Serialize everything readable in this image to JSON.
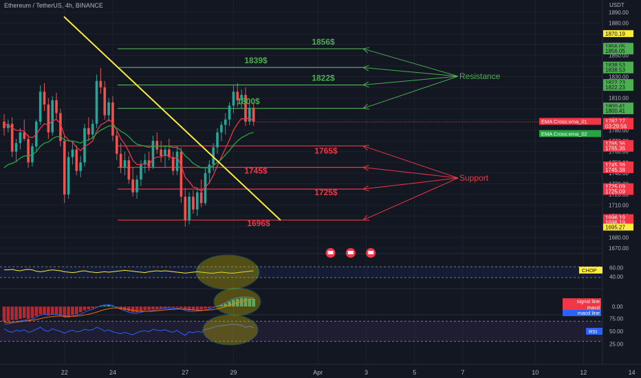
{
  "header": {
    "symbol_line": "Ethereum / TetherUS, 4h, BINANCE",
    "currency": "USDT"
  },
  "colors": {
    "bg": "#131722",
    "grid": "#1e222d",
    "up": "#26a69a",
    "down": "#ef5350",
    "resistance": "#4caf50",
    "support": "#f23645",
    "trendline": "#ffeb3b",
    "ema1": "#f23645",
    "ema2": "#26a641"
  },
  "price_axis": {
    "ticks": [
      "1890.00",
      "1880.00",
      "1870.00",
      "1860.00",
      "1850.00",
      "1840.00",
      "1830.00",
      "1820.00",
      "1810.00",
      "1800.00",
      "1790.00",
      "1780.00",
      "1770.00",
      "1760.00",
      "1750.00",
      "1740.00",
      "1730.00",
      "1720.00",
      "1710.00",
      "1700.00",
      "1690.00",
      "1680.00",
      "1670.00"
    ],
    "ylim": [
      1668,
      1898
    ],
    "tags": [
      {
        "text": "1870.19",
        "value": 1870.19,
        "bg": "#ffeb3b",
        "fg": "#131722"
      },
      {
        "text": "1856.05",
        "value": 1858.3,
        "bg": "#4caf50",
        "fg": "#131722"
      },
      {
        "text": "1856.05",
        "value": 1854.0,
        "bg": "#4caf50",
        "fg": "#131722"
      },
      {
        "text": "1838.53",
        "value": 1840.8,
        "bg": "#4caf50",
        "fg": "#131722"
      },
      {
        "text": "1838.53",
        "value": 1836.3,
        "bg": "#4caf50",
        "fg": "#131722"
      },
      {
        "text": "1822.23",
        "value": 1824.5,
        "bg": "#4caf50",
        "fg": "#131722"
      },
      {
        "text": "1822.23",
        "value": 1820.0,
        "bg": "#4caf50",
        "fg": "#131722"
      },
      {
        "text": "1800.41",
        "value": 1802.6,
        "bg": "#4caf50",
        "fg": "#131722"
      },
      {
        "text": "1800.41",
        "value": 1798.2,
        "bg": "#4caf50",
        "fg": "#131722"
      },
      {
        "text": "1787.77",
        "value": 1788.3,
        "bg": "#f23645",
        "fg": "#ffffff"
      },
      {
        "text": "03:29:56",
        "value": 1784.0,
        "bg": "#f23645",
        "fg": "#ffffff"
      },
      {
        "text": "1765.36",
        "value": 1767.6,
        "bg": "#f23645",
        "fg": "#ffffff"
      },
      {
        "text": "1765.36",
        "value": 1763.2,
        "bg": "#f23645",
        "fg": "#ffffff"
      },
      {
        "text": "1745.38",
        "value": 1747.6,
        "bg": "#f23645",
        "fg": "#ffffff"
      },
      {
        "text": "1745.38",
        "value": 1743.2,
        "bg": "#f23645",
        "fg": "#ffffff"
      },
      {
        "text": "1725.09",
        "value": 1727.3,
        "bg": "#f23645",
        "fg": "#ffffff"
      },
      {
        "text": "1725.09",
        "value": 1722.9,
        "bg": "#f23645",
        "fg": "#ffffff"
      },
      {
        "text": "1696.19",
        "value": 1698.4,
        "bg": "#f23645",
        "fg": "#ffffff"
      },
      {
        "text": "1696.19",
        "value": 1694.0,
        "bg": "#f23645",
        "fg": "#ffffff"
      },
      {
        "text": "1695.27",
        "value": 1689.6,
        "bg": "#ffeb3b",
        "fg": "#131722"
      }
    ],
    "indicator_labels": [
      {
        "text": "EMA Cross:ema_01",
        "value": 1788.3,
        "bg": "#f23645"
      },
      {
        "text": "EMA Cross:ema_02",
        "value": 1776.9,
        "bg": "#26a641"
      }
    ]
  },
  "x_axis": {
    "ticks": [
      {
        "label": "22",
        "bar": 15
      },
      {
        "label": "24",
        "bar": 27
      },
      {
        "label": "27",
        "bar": 45
      },
      {
        "label": "29",
        "bar": 57
      },
      {
        "label": "Apr",
        "bar": 78
      },
      {
        "label": "3",
        "bar": 90
      },
      {
        "label": "5",
        "bar": 102
      },
      {
        "label": "7",
        "bar": 114
      },
      {
        "label": "10",
        "bar": 132
      },
      {
        "label": "12",
        "bar": 144
      },
      {
        "label": "14",
        "bar": 156
      }
    ]
  },
  "chart_data": {
    "type": "candlestick",
    "title": "Ethereum / TetherUS, 4h, BINANCE",
    "ylim": [
      1668,
      1898
    ],
    "ohlc": [
      [
        1788,
        1795,
        1775,
        1782
      ],
      [
        1782,
        1790,
        1778,
        1786
      ],
      [
        1786,
        1792,
        1755,
        1760
      ],
      [
        1760,
        1772,
        1750,
        1768
      ],
      [
        1768,
        1782,
        1762,
        1778
      ],
      [
        1778,
        1790,
        1770,
        1772
      ],
      [
        1772,
        1776,
        1745,
        1750
      ],
      [
        1750,
        1768,
        1746,
        1765
      ],
      [
        1765,
        1790,
        1760,
        1788
      ],
      [
        1788,
        1822,
        1785,
        1816
      ],
      [
        1816,
        1824,
        1798,
        1804
      ],
      [
        1804,
        1810,
        1772,
        1778
      ],
      [
        1778,
        1812,
        1775,
        1808
      ],
      [
        1808,
        1815,
        1790,
        1796
      ],
      [
        1796,
        1800,
        1765,
        1770
      ],
      [
        1770,
        1776,
        1712,
        1720
      ],
      [
        1720,
        1760,
        1716,
        1755
      ],
      [
        1755,
        1770,
        1748,
        1762
      ],
      [
        1762,
        1766,
        1738,
        1742
      ],
      [
        1742,
        1756,
        1736,
        1750
      ],
      [
        1750,
        1786,
        1746,
        1782
      ],
      [
        1782,
        1792,
        1770,
        1776
      ],
      [
        1776,
        1790,
        1772,
        1786
      ],
      [
        1786,
        1832,
        1782,
        1826
      ],
      [
        1826,
        1838,
        1814,
        1820
      ],
      [
        1820,
        1826,
        1790,
        1794
      ],
      [
        1794,
        1810,
        1788,
        1806
      ],
      [
        1806,
        1812,
        1770,
        1775
      ],
      [
        1775,
        1780,
        1752,
        1758
      ],
      [
        1758,
        1768,
        1740,
        1745
      ],
      [
        1745,
        1760,
        1738,
        1752
      ],
      [
        1752,
        1756,
        1730,
        1734
      ],
      [
        1734,
        1745,
        1718,
        1722
      ],
      [
        1722,
        1738,
        1716,
        1734
      ],
      [
        1734,
        1752,
        1728,
        1748
      ],
      [
        1748,
        1758,
        1740,
        1752
      ],
      [
        1752,
        1760,
        1742,
        1746
      ],
      [
        1746,
        1775,
        1744,
        1770
      ],
      [
        1770,
        1778,
        1758,
        1762
      ],
      [
        1762,
        1770,
        1750,
        1756
      ],
      [
        1756,
        1766,
        1745,
        1762
      ],
      [
        1762,
        1772,
        1752,
        1755
      ],
      [
        1755,
        1760,
        1738,
        1742
      ],
      [
        1742,
        1765,
        1738,
        1760
      ],
      [
        1760,
        1764,
        1712,
        1718
      ],
      [
        1718,
        1726,
        1690,
        1696
      ],
      [
        1696,
        1722,
        1692,
        1718
      ],
      [
        1718,
        1724,
        1702,
        1706
      ],
      [
        1706,
        1726,
        1700,
        1722
      ],
      [
        1722,
        1734,
        1708,
        1712
      ],
      [
        1712,
        1745,
        1710,
        1740
      ],
      [
        1740,
        1752,
        1730,
        1748
      ],
      [
        1748,
        1768,
        1742,
        1764
      ],
      [
        1764,
        1782,
        1758,
        1778
      ],
      [
        1778,
        1788,
        1770,
        1785
      ],
      [
        1785,
        1796,
        1776,
        1790
      ],
      [
        1790,
        1806,
        1784,
        1803
      ],
      [
        1803,
        1822,
        1796,
        1816
      ],
      [
        1816,
        1824,
        1802,
        1808
      ],
      [
        1808,
        1818,
        1800,
        1813
      ],
      [
        1813,
        1820,
        1784,
        1788
      ],
      [
        1788,
        1806,
        1785,
        1801
      ],
      [
        1801,
        1806,
        1784,
        1788
      ]
    ],
    "ema_01": [
      1785,
      1785,
      1782,
      1780,
      1780,
      1779,
      1774,
      1773,
      1776,
      1782,
      1786,
      1785,
      1789,
      1790,
      1786,
      1775,
      1771,
      1769,
      1764,
      1761,
      1765,
      1767,
      1770,
      1779,
      1785,
      1787,
      1790,
      1787,
      1780,
      1772,
      1767,
      1760,
      1752,
      1748,
      1748,
      1749,
      1748,
      1753,
      1755,
      1755,
      1757,
      1756,
      1753,
      1755,
      1747,
      1736,
      1732,
      1727,
      1726,
      1723,
      1727,
      1731,
      1738,
      1747,
      1755,
      1763,
      1771,
      1780,
      1786,
      1791,
      1790,
      1792,
      1788
    ],
    "ema_02": [
      1745,
      1748,
      1749,
      1751,
      1754,
      1756,
      1756,
      1757,
      1760,
      1765,
      1768,
      1769,
      1772,
      1774,
      1774,
      1771,
      1770,
      1770,
      1769,
      1768,
      1770,
      1771,
      1773,
      1777,
      1780,
      1782,
      1784,
      1784,
      1782,
      1779,
      1777,
      1774,
      1770,
      1767,
      1766,
      1765,
      1764,
      1765,
      1765,
      1765,
      1765,
      1765,
      1764,
      1764,
      1761,
      1756,
      1753,
      1749,
      1747,
      1745,
      1745,
      1745,
      1747,
      1750,
      1753,
      1757,
      1761,
      1766,
      1770,
      1773,
      1775,
      1777,
      1778
    ],
    "resistance_levels": [
      {
        "label": "1856$",
        "value": 1856.05
      },
      {
        "label": "1839$",
        "value": 1838.53
      },
      {
        "label": "1822$",
        "value": 1822.23
      },
      {
        "label": "1800$",
        "value": 1800.41
      }
    ],
    "support_levels": [
      {
        "label": "1765$",
        "value": 1765.36
      },
      {
        "label": "1745$",
        "value": 1745.38
      },
      {
        "label": "1725$",
        "value": 1725.09
      },
      {
        "label": "1696$",
        "value": 1696.19
      }
    ],
    "resistance_title": "Resistance",
    "support_title": "Support",
    "trendline": {
      "from": [
        14,
        1886
      ],
      "to": [
        64,
        1696
      ]
    },
    "events_bars": [
      76,
      81,
      86
    ]
  },
  "subpanels": {
    "chop": {
      "label": "CHOP",
      "ticks": [
        "60.00",
        "40.00"
      ],
      "ylim": [
        20,
        80
      ],
      "band": [
        38.2,
        61.8
      ],
      "values": [
        55,
        55,
        56,
        54,
        53,
        55,
        56,
        55,
        52,
        51,
        52,
        54,
        55,
        54,
        53,
        51,
        50,
        49,
        50,
        52,
        53,
        51,
        50,
        49,
        50,
        51,
        50,
        51,
        52,
        53,
        54,
        53,
        52,
        51,
        50,
        49,
        51,
        52,
        53,
        52,
        53,
        52,
        51,
        50,
        49,
        48,
        49,
        50,
        51,
        50,
        49,
        48,
        48,
        49,
        50,
        49,
        48,
        48,
        49,
        50,
        51,
        52,
        53
      ]
    },
    "macd": {
      "labels": [
        "signal line",
        "macd",
        "macd line"
      ],
      "tick": "0.00",
      "hist": [
        -8,
        -7.5,
        -7,
        -7,
        -6.5,
        -6,
        -6.5,
        -6,
        -5,
        -4,
        -4,
        -4.5,
        -4,
        -4,
        -4.5,
        -5.5,
        -5,
        -4.5,
        -4,
        -3,
        -2,
        -1.5,
        -1,
        -0.5,
        0.3,
        0.5,
        0.8,
        0.3,
        -0.5,
        -1.5,
        -2,
        -2.5,
        -3,
        -3,
        -2.5,
        -2,
        -2,
        -1.5,
        -1.2,
        -1,
        -0.8,
        -0.6,
        -0.6,
        -0.4,
        -0.8,
        -1.5,
        -2,
        -2,
        -1.8,
        -1.6,
        -1.2,
        -0.8,
        -0.4,
        0.2,
        0.8,
        1.5,
        2.5,
        3.5,
        4,
        4.5,
        4.5,
        4.2,
        4
      ],
      "macd_line": [
        -9,
        -9,
        -8.5,
        -8,
        -7.5,
        -7,
        -7,
        -6.5,
        -5.5,
        -4.5,
        -4,
        -4.5,
        -4,
        -4,
        -4.5,
        -5.5,
        -5.5,
        -5,
        -4.5,
        -4,
        -3,
        -2,
        -1.5,
        -0.5,
        0.5,
        0.8,
        1,
        0.5,
        -0.5,
        -1.5,
        -2.2,
        -3,
        -3.5,
        -3.5,
        -3,
        -2.5,
        -2.5,
        -2,
        -1.5,
        -1.2,
        -1,
        -1,
        -1,
        -0.8,
        -1.2,
        -2,
        -2.5,
        -2.6,
        -2.4,
        -2.2,
        -1.8,
        -1.2,
        -0.6,
        0.2,
        1,
        2,
        3,
        4,
        4.6,
        5,
        5,
        4.8,
        4.5
      ],
      "signal": [
        -8,
        -8.2,
        -8.2,
        -8.1,
        -7.9,
        -7.6,
        -7.4,
        -7.1,
        -6.8,
        -6.3,
        -5.8,
        -5.5,
        -5.2,
        -5,
        -4.9,
        -5,
        -5.1,
        -5.1,
        -5,
        -4.8,
        -4.4,
        -4,
        -3.5,
        -2.9,
        -2.2,
        -1.6,
        -1.1,
        -0.8,
        -0.7,
        -0.9,
        -1.2,
        -1.6,
        -2,
        -2.3,
        -2.5,
        -2.5,
        -2.5,
        -2.4,
        -2.2,
        -2,
        -1.8,
        -1.6,
        -1.5,
        -1.3,
        -1.3,
        -1.4,
        -1.6,
        -1.8,
        -1.9,
        -2,
        -1.9,
        -1.8,
        -1.6,
        -1.2,
        -0.7,
        -0.1,
        0.6,
        1.3,
        2,
        2.7,
        3.3,
        3.7,
        4
      ]
    },
    "rsi": {
      "label": "RSI",
      "ticks": [
        "75.00",
        "50.00",
        "25.00"
      ],
      "ylim": [
        20,
        80
      ],
      "band": [
        30,
        70
      ],
      "values": [
        55,
        50,
        48,
        52,
        50,
        53,
        48,
        50,
        54,
        58,
        52,
        50,
        55,
        52,
        50,
        46,
        50,
        52,
        49,
        50,
        54,
        52,
        53,
        58,
        55,
        50,
        53,
        49,
        47,
        45,
        48,
        45,
        43,
        47,
        50,
        51,
        49,
        54,
        52,
        51,
        53,
        50,
        48,
        52,
        46,
        42,
        49,
        47,
        50,
        48,
        54,
        55,
        58,
        60,
        61,
        62,
        63,
        64,
        63,
        62,
        58,
        60,
        57
      ]
    }
  }
}
